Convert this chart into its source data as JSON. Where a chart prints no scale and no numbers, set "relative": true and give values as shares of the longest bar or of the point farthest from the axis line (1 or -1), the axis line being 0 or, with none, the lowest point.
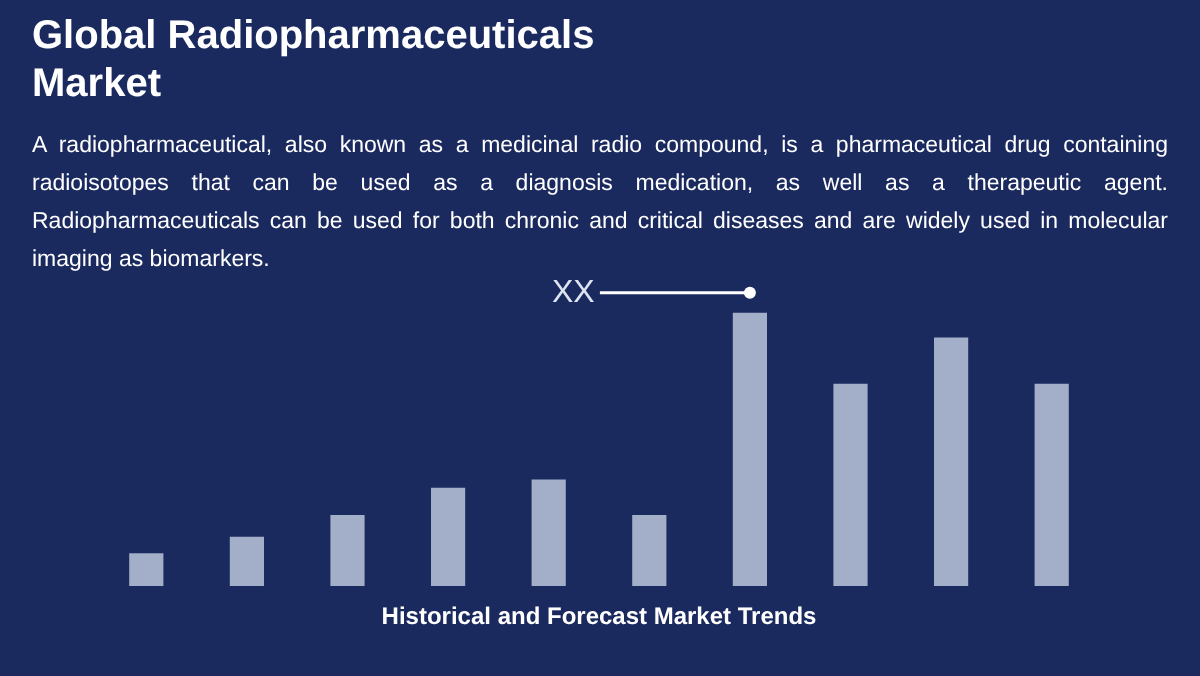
{
  "chart_data": {
    "type": "bar",
    "title": "Global Radiopharmaceuticals Market",
    "subtitle": "A radiopharmaceutical, also known as a medicinal radio compound, is a pharmaceutical drug containing radioisotopes that can be used as a diagnosis medication, as well as a therapeutic agent. Radiopharmaceuticals can be used for both chronic and critical diseases and are widely used in molecular imaging as biomarkers.",
    "xlabel": "Historical and Forecast Market Trends",
    "annotations": [
      "XX"
    ],
    "categories": [
      null,
      null,
      null,
      null,
      null,
      null,
      null,
      null,
      null,
      null
    ],
    "values": [
      0.12,
      0.18,
      0.26,
      0.36,
      0.39,
      0.26,
      1,
      0.74,
      0.91,
      0.74
    ],
    "color": "#a3aec8",
    "relative": true
  }
}
